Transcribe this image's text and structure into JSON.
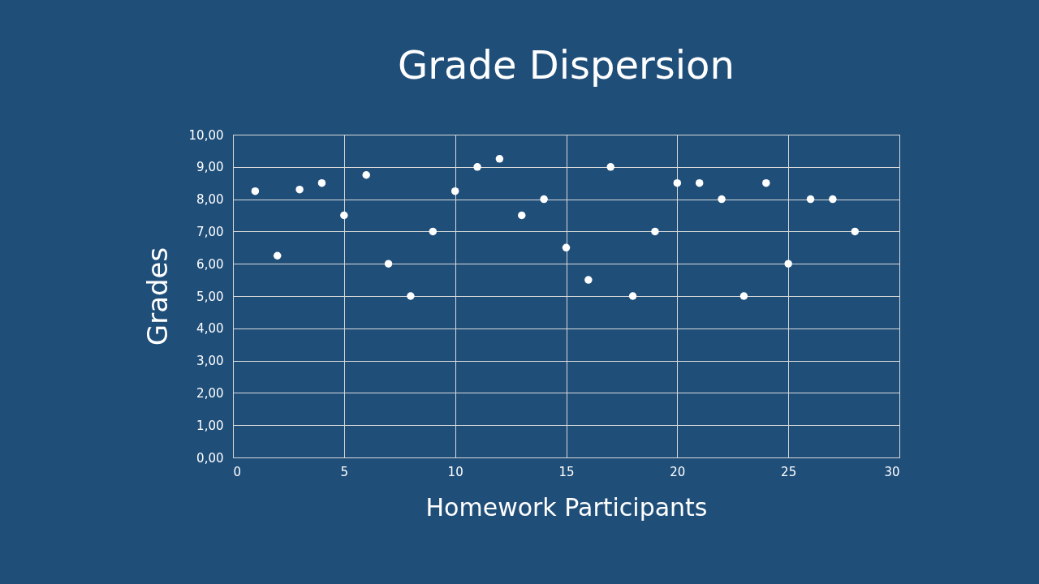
{
  "chart_data": {
    "type": "scatter",
    "title": "Grade Dispersion",
    "xlabel": "Homework Participants",
    "ylabel": "Grades",
    "series": [
      {
        "color": "#ffffff",
        "x": [
          1,
          2,
          3,
          4,
          5,
          6,
          7,
          8,
          9,
          10,
          11,
          12,
          13,
          14,
          15,
          16,
          17,
          18,
          19,
          20,
          21,
          22,
          23,
          24,
          25,
          26,
          27,
          28
        ],
        "values": [
          8.25,
          6.25,
          8.3,
          8.5,
          7.5,
          8.75,
          6.0,
          5.0,
          7.0,
          8.25,
          9.0,
          9.25,
          7.5,
          8.0,
          6.5,
          5.5,
          9.0,
          5.0,
          7.0,
          8.5,
          8.5,
          8.0,
          5.0,
          8.5,
          6.0,
          8.0,
          8.0,
          7.0
        ]
      }
    ],
    "xlim": [
      0,
      30
    ],
    "xticks": [
      0,
      5,
      10,
      15,
      20,
      25,
      30
    ],
    "ylim": [
      0,
      10
    ],
    "yticks": [
      {
        "value": 0,
        "label": "0,00"
      },
      {
        "value": 1,
        "label": "1,00"
      },
      {
        "value": 2,
        "label": "2,00"
      },
      {
        "value": 3,
        "label": "3,00"
      },
      {
        "value": 4,
        "label": "4,00"
      },
      {
        "value": 5,
        "label": "5,00"
      },
      {
        "value": 6,
        "label": "6,00"
      },
      {
        "value": 7,
        "label": "7,00"
      },
      {
        "value": 8,
        "label": "8,00"
      },
      {
        "value": 9,
        "label": "9,00"
      },
      {
        "value": 10,
        "label": "10,00"
      }
    ],
    "grid": true,
    "marker": "circle",
    "legend": false
  }
}
